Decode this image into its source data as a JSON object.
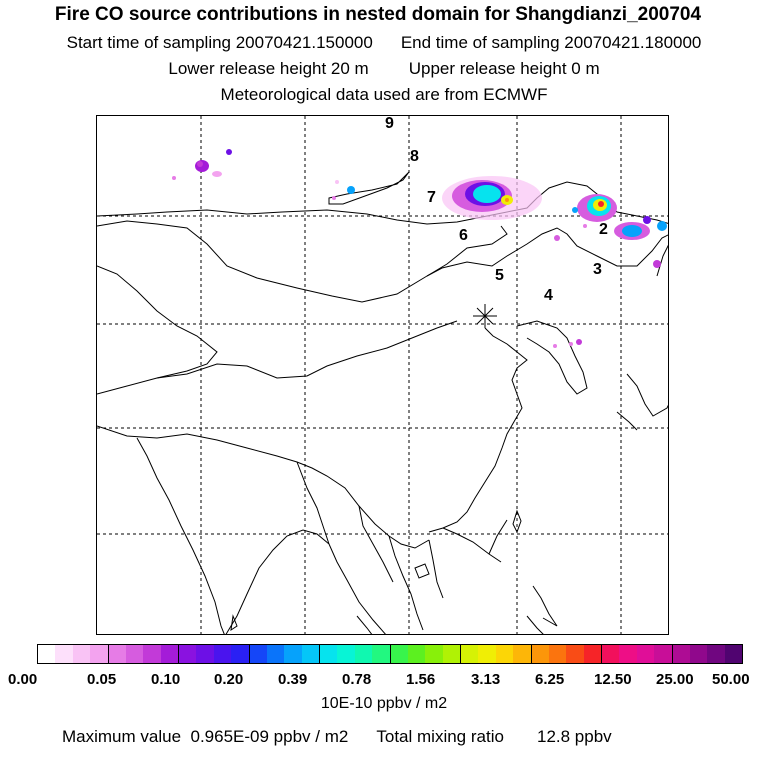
{
  "header": {
    "title": "Fire CO source contributions in nested domain for Shangdianzi_200704",
    "start_label": "Start time of sampling 20070421.150000",
    "end_label": "End time of sampling 20070421.180000",
    "lower_label": "Lower release height   20 m",
    "upper_label": "Upper release height    0 m",
    "met_label": "Meteorological data used are from ECMWF"
  },
  "map": {
    "trajectory_labels": [
      "2",
      "3",
      "4",
      "5",
      "6",
      "7",
      "8",
      "9"
    ],
    "colors": {
      "frame": "#000000",
      "coast": "#000000",
      "grid": "#000000"
    }
  },
  "colorbar": {
    "colors": [
      "#ffffff",
      "#fde0fb",
      "#f9c3f5",
      "#f3a3ef",
      "#e67ce6",
      "#d65cdf",
      "#c23ad8",
      "#a41cd8",
      "#8a12e0",
      "#6d10e6",
      "#4a14ee",
      "#2a20f4",
      "#1546f8",
      "#0a74fa",
      "#06a2fb",
      "#05c6f8",
      "#06e3ee",
      "#08f4d6",
      "#10f8b0",
      "#22f880",
      "#38f44c",
      "#5cf020",
      "#88f00a",
      "#b0f205",
      "#d6f205",
      "#f0ee05",
      "#fcd606",
      "#fdb608",
      "#fc960a",
      "#fb740e",
      "#f94c16",
      "#f62428",
      "#f2105c",
      "#ee0e86",
      "#e00e98",
      "#c80e98",
      "#ae0c94",
      "#90088c",
      "#700680",
      "#500470"
    ],
    "tick_labels": [
      "0.00",
      "0.05",
      "0.10",
      "0.20",
      "0.39",
      "0.78",
      "1.56",
      "3.13",
      "6.25",
      "12.50",
      "25.00",
      "50.00"
    ],
    "units": "10E-10 ppbv / m2"
  },
  "footer": {
    "max_label": "Maximum value",
    "max_value": "0.965E-09 ppbv / m2",
    "total_label": "Total mixing ratio",
    "total_value": "12.8 ppbv"
  }
}
